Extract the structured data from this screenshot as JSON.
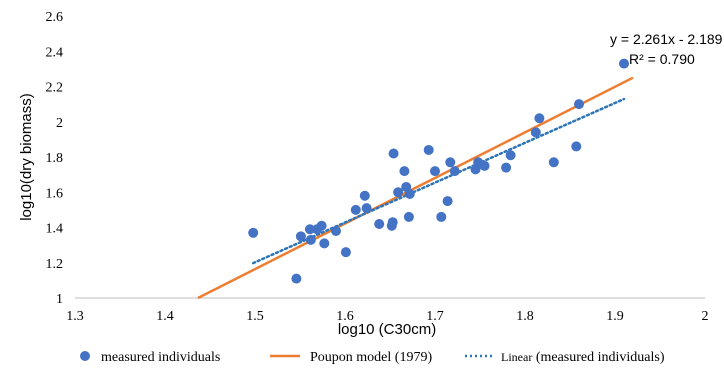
{
  "chart_data": {
    "type": "scatter",
    "xlabel": "log10 (C30cm)",
    "ylabel": "log10(dry biomass)",
    "xlim": [
      1.3,
      2.0
    ],
    "ylim": [
      1.0,
      2.6
    ],
    "x_ticks": [
      "1.3",
      "1.4",
      "1.5",
      "1.6",
      "1.7",
      "1.8",
      "1.9",
      "2"
    ],
    "y_ticks": [
      "1",
      "1.2",
      "1.4",
      "1.6",
      "1.8",
      "2",
      "2.2",
      "2.4",
      "2.6"
    ],
    "grid": false,
    "legend_position": "bottom",
    "colors": {
      "points": "#4472c4",
      "model": "#ed7d31",
      "trend": "#2e75b6",
      "axis": "#bfbfbf"
    },
    "series": [
      {
        "name": "measured individuals",
        "kind": "scatter",
        "points": [
          [
            1.498,
            1.37
          ],
          [
            1.546,
            1.11
          ],
          [
            1.551,
            1.35
          ],
          [
            1.561,
            1.39
          ],
          [
            1.562,
            1.33
          ],
          [
            1.569,
            1.39
          ],
          [
            1.574,
            1.41
          ],
          [
            1.577,
            1.31
          ],
          [
            1.59,
            1.38
          ],
          [
            1.601,
            1.26
          ],
          [
            1.612,
            1.5
          ],
          [
            1.622,
            1.58
          ],
          [
            1.624,
            1.51
          ],
          [
            1.638,
            1.42
          ],
          [
            1.652,
            1.41
          ],
          [
            1.653,
            1.43
          ],
          [
            1.654,
            1.82
          ],
          [
            1.659,
            1.6
          ],
          [
            1.666,
            1.72
          ],
          [
            1.668,
            1.63
          ],
          [
            1.671,
            1.46
          ],
          [
            1.672,
            1.59
          ],
          [
            1.693,
            1.84
          ],
          [
            1.7,
            1.72
          ],
          [
            1.707,
            1.46
          ],
          [
            1.714,
            1.55
          ],
          [
            1.717,
            1.77
          ],
          [
            1.722,
            1.72
          ],
          [
            1.745,
            1.73
          ],
          [
            1.748,
            1.77
          ],
          [
            1.755,
            1.75
          ],
          [
            1.779,
            1.74
          ],
          [
            1.784,
            1.81
          ],
          [
            1.812,
            1.94
          ],
          [
            1.816,
            2.02
          ],
          [
            1.832,
            1.77
          ],
          [
            1.857,
            1.86
          ],
          [
            1.86,
            2.1
          ],
          [
            1.91,
            2.33
          ]
        ]
      },
      {
        "name": "Poupon model (1979)",
        "kind": "line",
        "line": [
          [
            1.4366,
            1.0
          ],
          [
            1.92,
            2.25
          ]
        ]
      },
      {
        "name": "Linear (measured individuals)",
        "kind": "dotted-line",
        "line": [
          [
            1.498,
            1.198
          ],
          [
            1.91,
            2.129
          ]
        ]
      }
    ],
    "legend": [
      {
        "label": "measured individuals",
        "symbol": "marker"
      },
      {
        "label": "Poupon model (1979)",
        "symbol": "line"
      },
      {
        "label": "Linear",
        "label_suffix": " (measured individuals)",
        "symbol": "dotted"
      }
    ],
    "annotations": {
      "equation": "y = 2.261x - 2.189",
      "r_squared": "R² = 0.790"
    }
  }
}
